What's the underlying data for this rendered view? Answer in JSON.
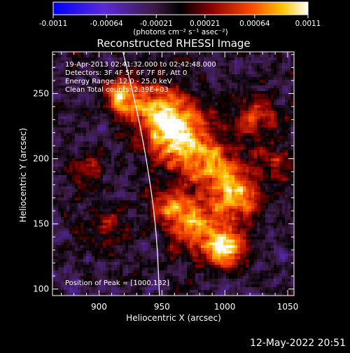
{
  "chart_data": {
    "type": "heatmap",
    "title": "Reconstructed RHESSI Image",
    "xlabel": "Heliocentric X (arcsec)",
    "ylabel": "Heliocentric Y (arcsec)",
    "xlim": [
      863,
      1055
    ],
    "ylim": [
      95,
      282
    ],
    "x_ticks": [
      900,
      950,
      1000,
      1050
    ],
    "y_ticks": [
      100,
      150,
      200,
      250
    ],
    "colorbar": {
      "units_line": "(photons cm⁻² s⁻¹ asec⁻²)",
      "ticks": [
        "-0.0011",
        "-0.00064",
        "-0.00021",
        "0.00021",
        "0.00064",
        "0.0011"
      ],
      "min": -0.0011,
      "max": 0.0011
    },
    "annotations": {
      "time_range": "19-Apr-2013 02:41:32.000 to 02:42:48.000",
      "detectors": "Detectors: 3F 4F 5F 6F 7F 8F, Att 0",
      "energy_range": "Energy Range: 12.0 - 25.0 keV",
      "clean_counts": "Clean    Total counts: 2.39E+03",
      "peak_position": "Position of Peak = [1000,132]"
    },
    "limb_curve_points": [
      [
        919,
        282
      ],
      [
        932,
        230
      ],
      [
        941,
        180
      ],
      [
        946,
        140
      ],
      [
        948,
        95
      ]
    ],
    "sources": [
      {
        "x": 918,
        "y": 248,
        "amp": 1.0,
        "sigma": 10
      },
      {
        "x": 948,
        "y": 235,
        "amp": 1.1,
        "sigma": 16
      },
      {
        "x": 968,
        "y": 213,
        "amp": 1.0,
        "sigma": 17
      },
      {
        "x": 995,
        "y": 192,
        "amp": 0.8,
        "sigma": 14
      },
      {
        "x": 1010,
        "y": 170,
        "amp": 0.9,
        "sigma": 13
      },
      {
        "x": 1000,
        "y": 132,
        "amp": 1.2,
        "sigma": 11
      },
      {
        "x": 975,
        "y": 150,
        "amp": 0.9,
        "sigma": 15
      },
      {
        "x": 1025,
        "y": 232,
        "amp": 0.7,
        "sigma": 12
      },
      {
        "x": 1040,
        "y": 195,
        "amp": 0.6,
        "sigma": 10
      },
      {
        "x": 955,
        "y": 165,
        "amp": 0.6,
        "sigma": 10
      },
      {
        "x": 890,
        "y": 190,
        "amp": 0.5,
        "sigma": 10
      },
      {
        "x": 905,
        "y": 145,
        "amp": 0.4,
        "sigma": 12
      }
    ]
  },
  "footer": {
    "date_stamp": "12-May-2022 20:51"
  }
}
